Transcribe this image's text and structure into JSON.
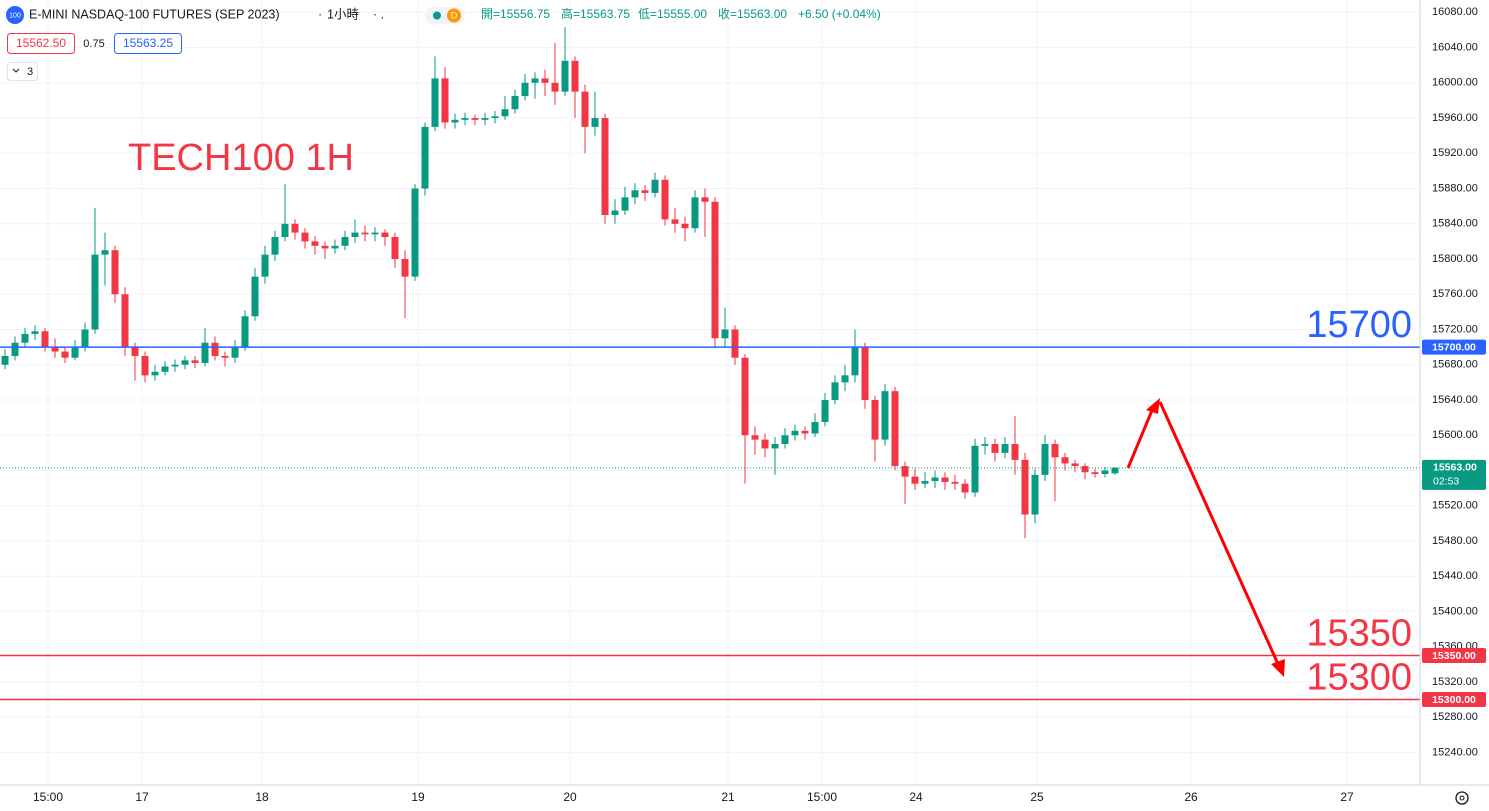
{
  "chart_data": {
    "type": "candlestick",
    "title": "TECH100 1H",
    "header": {
      "icon": "100",
      "symbol": "E-MINI NASDAQ-100 FUTURES (SEP 2023)",
      "interval": "1小時",
      "badge": "D",
      "open": "開=15556.75",
      "high": "高=15563.75",
      "low": "低=15555.00",
      "close": "收=15563.00",
      "change": "+6.50 (+0.04%)",
      "bid": "15562.50",
      "spread": "0.75",
      "ask": "15563.25",
      "indicators": "3"
    },
    "up_color": "#089981",
    "down_color": "#f23645",
    "grid": true,
    "candles": [
      [
        15680,
        15698,
        15675,
        15690
      ],
      [
        15690,
        15712,
        15685,
        15705
      ],
      [
        15705,
        15722,
        15700,
        15715
      ],
      [
        15715,
        15725,
        15708,
        15718
      ],
      [
        15718,
        15722,
        15695,
        15700
      ],
      [
        15700,
        15710,
        15688,
        15695
      ],
      [
        15695,
        15700,
        15682,
        15688
      ],
      [
        15688,
        15708,
        15685,
        15700
      ],
      [
        15700,
        15728,
        15695,
        15720
      ],
      [
        15720,
        15858,
        15715,
        15805
      ],
      [
        15805,
        15830,
        15770,
        15810
      ],
      [
        15810,
        15815,
        15750,
        15760
      ],
      [
        15760,
        15768,
        15690,
        15700
      ],
      [
        15700,
        15705,
        15662,
        15690
      ],
      [
        15690,
        15695,
        15660,
        15668
      ],
      [
        15668,
        15680,
        15662,
        15672
      ],
      [
        15672,
        15684,
        15668,
        15678
      ],
      [
        15678,
        15686,
        15672,
        15680
      ],
      [
        15680,
        15690,
        15675,
        15685
      ],
      [
        15685,
        15690,
        15676,
        15682
      ],
      [
        15682,
        15722,
        15678,
        15705
      ],
      [
        15705,
        15712,
        15685,
        15690
      ],
      [
        15690,
        15695,
        15678,
        15688
      ],
      [
        15688,
        15708,
        15682,
        15700
      ],
      [
        15700,
        15742,
        15696,
        15735
      ],
      [
        15735,
        15790,
        15730,
        15780
      ],
      [
        15780,
        15815,
        15772,
        15805
      ],
      [
        15805,
        15832,
        15798,
        15825
      ],
      [
        15825,
        15885,
        15820,
        15840
      ],
      [
        15840,
        15845,
        15822,
        15830
      ],
      [
        15830,
        15835,
        15812,
        15820
      ],
      [
        15820,
        15826,
        15805,
        15815
      ],
      [
        15815,
        15820,
        15800,
        15812
      ],
      [
        15812,
        15822,
        15806,
        15815
      ],
      [
        15815,
        15832,
        15810,
        15825
      ],
      [
        15825,
        15845,
        15818,
        15830
      ],
      [
        15830,
        15838,
        15820,
        15828
      ],
      [
        15828,
        15836,
        15820,
        15830
      ],
      [
        15830,
        15834,
        15815,
        15825
      ],
      [
        15825,
        15830,
        15790,
        15800
      ],
      [
        15800,
        15810,
        15733,
        15780
      ],
      [
        15780,
        15885,
        15775,
        15880
      ],
      [
        15880,
        15955,
        15872,
        15950
      ],
      [
        15950,
        16030,
        15945,
        16005
      ],
      [
        16005,
        16018,
        15948,
        15955
      ],
      [
        15955,
        15965,
        15948,
        15958
      ],
      [
        15958,
        15966,
        15952,
        15960
      ],
      [
        15960,
        15964,
        15952,
        15958
      ],
      [
        15958,
        15966,
        15952,
        15960
      ],
      [
        15960,
        15968,
        15954,
        15962
      ],
      [
        15962,
        15985,
        15958,
        15970
      ],
      [
        15970,
        15992,
        15965,
        15985
      ],
      [
        15985,
        16010,
        15980,
        16000
      ],
      [
        16000,
        16012,
        15982,
        16005
      ],
      [
        16005,
        16015,
        15985,
        16000
      ],
      [
        16000,
        16045,
        15975,
        15990
      ],
      [
        15990,
        16063,
        15985,
        16025
      ],
      [
        16025,
        16030,
        15960,
        15990
      ],
      [
        15990,
        15998,
        15920,
        15950
      ],
      [
        15950,
        15990,
        15940,
        15960
      ],
      [
        15960,
        15965,
        15840,
        15850
      ],
      [
        15850,
        15868,
        15840,
        15855
      ],
      [
        15855,
        15882,
        15850,
        15870
      ],
      [
        15870,
        15886,
        15862,
        15878
      ],
      [
        15878,
        15884,
        15866,
        15875
      ],
      [
        15875,
        15898,
        15870,
        15890
      ],
      [
        15890,
        15895,
        15838,
        15845
      ],
      [
        15845,
        15858,
        15830,
        15840
      ],
      [
        15840,
        15848,
        15820,
        15835
      ],
      [
        15835,
        15878,
        15830,
        15870
      ],
      [
        15870,
        15880,
        15825,
        15865
      ],
      [
        15865,
        15870,
        15700,
        15710
      ],
      [
        15710,
        15745,
        15700,
        15720
      ],
      [
        15720,
        15725,
        15680,
        15688
      ],
      [
        15688,
        15692,
        15545,
        15600
      ],
      [
        15600,
        15610,
        15578,
        15595
      ],
      [
        15595,
        15602,
        15575,
        15585
      ],
      [
        15585,
        15598,
        15555,
        15590
      ],
      [
        15590,
        15608,
        15585,
        15600
      ],
      [
        15600,
        15612,
        15594,
        15605
      ],
      [
        15605,
        15610,
        15595,
        15602
      ],
      [
        15602,
        15625,
        15598,
        15615
      ],
      [
        15615,
        15648,
        15610,
        15640
      ],
      [
        15640,
        15668,
        15635,
        15660
      ],
      [
        15660,
        15680,
        15650,
        15668
      ],
      [
        15668,
        15720,
        15660,
        15700
      ],
      [
        15700,
        15705,
        15630,
        15640
      ],
      [
        15640,
        15645,
        15570,
        15595
      ],
      [
        15595,
        15658,
        15588,
        15650
      ],
      [
        15650,
        15655,
        15560,
        15565
      ],
      [
        15565,
        15570,
        15522,
        15553
      ],
      [
        15553,
        15562,
        15538,
        15545
      ],
      [
        15545,
        15558,
        15540,
        15548
      ],
      [
        15548,
        15560,
        15540,
        15552
      ],
      [
        15552,
        15558,
        15538,
        15547
      ],
      [
        15547,
        15555,
        15538,
        15545
      ],
      [
        15545,
        15550,
        15528,
        15535
      ],
      [
        15535,
        15596,
        15530,
        15588
      ],
      [
        15588,
        15598,
        15578,
        15590
      ],
      [
        15590,
        15596,
        15570,
        15580
      ],
      [
        15580,
        15598,
        15574,
        15590
      ],
      [
        15590,
        15622,
        15555,
        15572
      ],
      [
        15572,
        15580,
        15483,
        15510
      ],
      [
        15510,
        15562,
        15500,
        15555
      ],
      [
        15555,
        15600,
        15548,
        15590
      ],
      [
        15590,
        15595,
        15525,
        15575
      ],
      [
        15575,
        15580,
        15560,
        15568
      ],
      [
        15568,
        15572,
        15558,
        15565
      ],
      [
        15565,
        15568,
        15550,
        15558
      ],
      [
        15558,
        15562,
        15552,
        15556
      ],
      [
        15556,
        15564,
        15552,
        15560
      ],
      [
        15556.75,
        15563.75,
        15555,
        15563
      ]
    ],
    "xlim": [
      -0.5,
      141.5
    ],
    "xticks": [
      {
        "value": 4.3,
        "label": "15:00"
      },
      {
        "value": 13.7,
        "label": "17"
      },
      {
        "value": 25.7,
        "label": "18"
      },
      {
        "value": 41.3,
        "label": "19"
      },
      {
        "value": 56.5,
        "label": "20"
      },
      {
        "value": 72.3,
        "label": "21"
      },
      {
        "value": 81.7,
        "label": "15:00"
      },
      {
        "value": 91.1,
        "label": "24"
      },
      {
        "value": 103.2,
        "label": "25"
      },
      {
        "value": 118.6,
        "label": "26"
      },
      {
        "value": 134.2,
        "label": "27"
      }
    ],
    "ylim": [
      15203,
      16094
    ],
    "yticks": [
      {
        "value": 15240,
        "label": "15240.00"
      },
      {
        "value": 15280,
        "label": "15280.00"
      },
      {
        "value": 15320,
        "label": "15320.00"
      },
      {
        "value": 15360,
        "label": "15360.00"
      },
      {
        "value": 15400,
        "label": "15400.00"
      },
      {
        "value": 15440,
        "label": "15440.00"
      },
      {
        "value": 15480,
        "label": "15480.00"
      },
      {
        "value": 15520,
        "label": "15520.00"
      },
      {
        "value": 15560,
        "label": "15560.00"
      },
      {
        "value": 15600,
        "label": "15600.00"
      },
      {
        "value": 15640,
        "label": "15640.00"
      },
      {
        "value": 15680,
        "label": "15680.00"
      },
      {
        "value": 15720,
        "label": "15720.00"
      },
      {
        "value": 15760,
        "label": "15760.00"
      },
      {
        "value": 15800,
        "label": "15800.00"
      },
      {
        "value": 15840,
        "label": "15840.00"
      },
      {
        "value": 15880,
        "label": "15880.00"
      },
      {
        "value": 15920,
        "label": "15920.00"
      },
      {
        "value": 15960,
        "label": "15960.00"
      },
      {
        "value": 16000,
        "label": "16000.00"
      },
      {
        "value": 16040,
        "label": "16040.00"
      },
      {
        "value": 16080,
        "label": "16080.00"
      }
    ],
    "levels": [
      {
        "value": 15700,
        "label": "15700",
        "tag": "15700.00",
        "color": "#2962ff"
      },
      {
        "value": 15350,
        "label": "15350",
        "tag": "15350.00",
        "color": "#f23645"
      },
      {
        "value": 15300,
        "label": "15300",
        "tag": "15300.00",
        "color": "#f23645"
      }
    ],
    "last_price": {
      "value": 15563,
      "tag": "15563.00",
      "countdown": "02:53",
      "color": "#089981"
    }
  }
}
